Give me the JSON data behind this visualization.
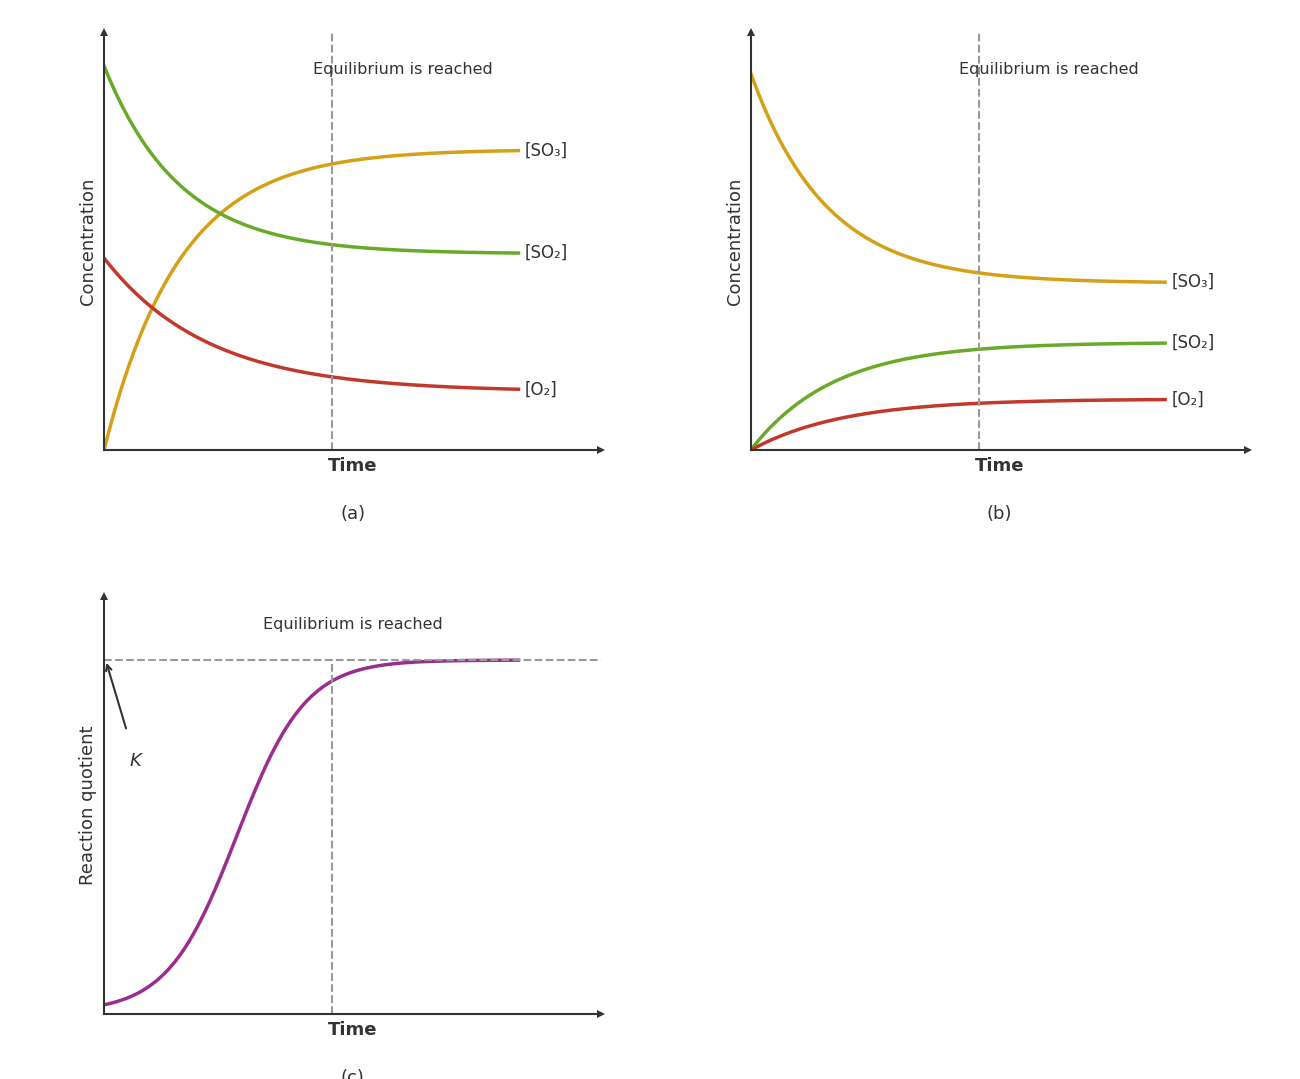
{
  "bg_color": "#ffffff",
  "subplot_labels": [
    "(a)",
    "(b)",
    "(c)"
  ],
  "equilibrium_text": "Equilibrium is reached",
  "colors": {
    "SO3_gold": "#d4a017",
    "SO2_green": "#6aaa2a",
    "O2_red": "#c0392b",
    "reaction_quotient": "#9b2d8e"
  },
  "labels": {
    "SO3": "[SO₃]",
    "SO2": "[SO₂]",
    "O2": "[O₂]",
    "K": "K"
  },
  "ylabel_a": "Concentration",
  "ylabel_b": "Concentration",
  "ylabel_c": "Reaction quotient",
  "xlabel": "Time",
  "line_width": 2.5,
  "dashed_color": "#999999",
  "arrow_color": "#333333",
  "text_color": "#333333"
}
